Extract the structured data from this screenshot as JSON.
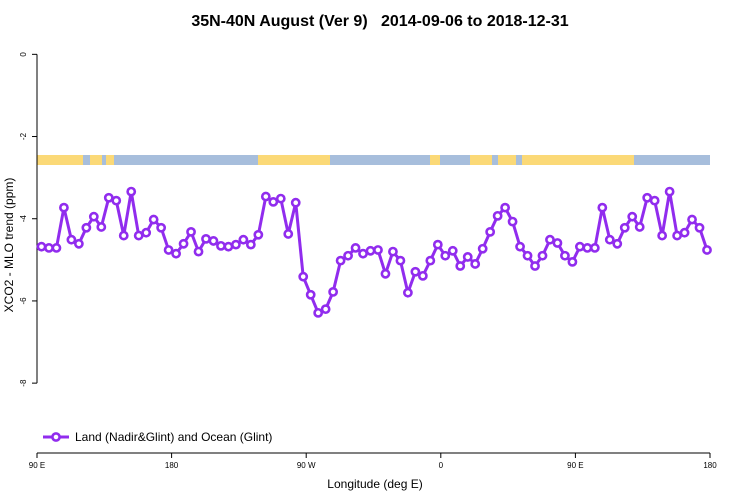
{
  "chart_data": {
    "type": "line",
    "title": "35N-40N August (Ver 9)   2014-09-06 to 2018-12-31",
    "xlabel": "Longitude (deg E)",
    "ylabel": "XCO2 - MLO trend (ppm)",
    "xlim": [
      90,
      540
    ],
    "ylim": [
      -9.7,
      0.3
    ],
    "xticks": [
      {
        "value": 90,
        "label": "90 E"
      },
      {
        "value": 180,
        "label": "180"
      },
      {
        "value": 270,
        "label": "90 W"
      },
      {
        "value": 360,
        "label": "0"
      },
      {
        "value": 450,
        "label": "90 E"
      },
      {
        "value": 540,
        "label": "180"
      }
    ],
    "yticks": [
      0,
      -2,
      -4,
      -6,
      -8
    ],
    "legend": "bottom-left",
    "x": [
      93,
      98,
      103,
      108,
      113,
      118,
      123,
      128,
      133,
      138,
      143,
      148,
      153,
      158,
      163,
      168,
      173,
      178,
      183,
      188,
      193,
      198,
      203,
      208,
      213,
      218,
      223,
      228,
      233,
      238,
      243,
      248,
      253,
      258,
      263,
      268,
      273,
      278,
      283,
      288,
      293,
      298,
      303,
      308,
      313,
      318,
      323,
      328,
      333,
      338,
      343,
      348,
      353,
      358,
      363,
      368,
      373,
      378,
      383,
      388,
      393,
      398,
      403,
      408,
      413,
      418,
      423,
      428,
      433,
      438,
      443,
      448,
      453,
      458,
      463,
      468,
      473,
      478,
      483,
      488,
      493,
      498,
      503,
      508,
      513,
      518,
      523,
      528,
      533,
      538
    ],
    "series": [
      {
        "name": "Land (Nadir&Glint) and Ocean (Glint)",
        "color": "#912cee",
        "values": [
          -4.68,
          -4.71,
          -4.71,
          -3.73,
          -4.51,
          -4.61,
          -4.22,
          -3.95,
          -4.2,
          -3.49,
          -3.56,
          -4.41,
          -3.34,
          -4.41,
          -4.34,
          -4.02,
          -4.22,
          -4.76,
          -4.85,
          -4.61,
          -4.32,
          -4.8,
          -4.49,
          -4.54,
          -4.66,
          -4.68,
          -4.63,
          -4.51,
          -4.63,
          -4.39,
          -3.46,
          -3.59,
          -3.51,
          -4.37,
          -3.61,
          -5.41,
          -5.85,
          -6.29,
          -6.2,
          -5.78,
          -5.02,
          -4.9,
          -4.71,
          -4.85,
          -4.78,
          -4.76,
          -5.34,
          -4.8,
          -5.02,
          -5.8,
          -5.29,
          -5.39,
          -5.02,
          -4.63,
          -4.9,
          -4.78,
          -5.15,
          -4.93,
          -5.1,
          -4.73,
          -4.32,
          -3.93,
          -3.73,
          -4.07,
          -4.68,
          -4.9,
          -5.15,
          -4.9,
          -4.51,
          -4.59,
          -4.9,
          -5.05,
          -4.68,
          -4.71,
          -4.71,
          -3.73,
          -4.51,
          -4.61,
          -4.22,
          -3.95,
          -4.2,
          -3.49,
          -3.56,
          -4.41,
          -3.34,
          -4.41,
          -4.34,
          -4.02,
          -4.22,
          -4.76
        ]
      }
    ]
  }
}
